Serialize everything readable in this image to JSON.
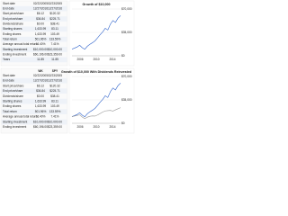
{
  "panels": [
    {
      "table": {
        "rows": [
          [
            "Start date",
            "02/22/2005",
            "02/23/2005"
          ],
          [
            "End date",
            "12/27/2016",
            "12/27/2016"
          ],
          [
            "Start price/share",
            "$6.12",
            "$120.32"
          ],
          [
            "End price/share",
            "$36.84",
            "$225.71"
          ],
          [
            "Dividends/share",
            "$0.00",
            "$38.41"
          ],
          [
            "Starting shares",
            "1,633.99",
            "83.11"
          ],
          [
            "Ending shares",
            "1,633.99",
            "103.49"
          ],
          [
            "Total return",
            "501.96%",
            "133.59%"
          ],
          [
            "Average annual total return",
            "16.40%",
            "7.41%"
          ],
          [
            "Starting investment",
            "$10,000.00",
            "$10,000.00"
          ],
          [
            "Ending investment",
            "$60,196.00",
            "$23,359.00"
          ],
          [
            "Years",
            "11.85",
            "11.85"
          ]
        ]
      },
      "chart": {
        "type": "line",
        "title": "Growth of $10,000",
        "xticks": [
          "2006",
          "2010",
          "2014"
        ],
        "ylim": [
          0,
          70000
        ],
        "yticks": [
          {
            "value": 0,
            "label": "$0"
          },
          {
            "value": 35000,
            "label": "$35,000"
          },
          {
            "value": 70000,
            "label": "$70,000"
          }
        ],
        "series": [
          {
            "color": "#3366cc",
            "values": [
              10000,
              11500,
              13200,
              15800,
              12100,
              9800,
              14300,
              17200,
              19600,
              22400,
              26800,
              31500,
              35800,
              41200,
              38600,
              47300,
              52800,
              49900,
              56400,
              60196
            ]
          }
        ]
      }
    },
    {
      "table": {
        "header": [
          "WK",
          "SPY"
        ],
        "rows": [
          [
            "Start date",
            "02/22/2005",
            "02/23/2005"
          ],
          [
            "End date",
            "12/27/2016",
            "12/27/2016"
          ],
          [
            "Start price/share",
            "$6.12",
            "$120.32"
          ],
          [
            "End price/share",
            "$36.84",
            "$225.71"
          ],
          [
            "Dividends/share",
            "$0.00",
            "$38.41"
          ],
          [
            "Starting shares",
            "1,633.99",
            "83.11"
          ],
          [
            "Ending shares",
            "1,633.99",
            "103.49"
          ],
          [
            "Total return",
            "501.96%",
            "133.59%"
          ],
          [
            "Average annual total return",
            "16.40%",
            "7.41%"
          ],
          [
            "Starting investment",
            "$10,000.00",
            "$10,000.00"
          ],
          [
            "Ending investment",
            "$60,196.00",
            "$23,359.00"
          ]
        ]
      },
      "chart": {
        "type": "line",
        "title": "Growth of $10,000 With Dividends Reinvested",
        "xticks": [
          "2006",
          "2010",
          "2014"
        ],
        "ylim": [
          0,
          70000
        ],
        "yticks": [
          {
            "value": 0,
            "label": "$0"
          },
          {
            "value": 35000,
            "label": "$35,000"
          },
          {
            "value": 70000,
            "label": "$70,000"
          }
        ],
        "series": [
          {
            "color": "#3366cc",
            "values": [
              10000,
              11500,
              13200,
              15800,
              12100,
              9800,
              14300,
              17200,
              19600,
              22400,
              26800,
              31500,
              35800,
              41200,
              38600,
              47300,
              52800,
              49900,
              56400,
              60196
            ]
          },
          {
            "color": "#999999",
            "values": [
              10000,
              10800,
              11900,
              12600,
              9400,
              7100,
              9200,
              10500,
              11000,
              10800,
              12400,
              14600,
              16800,
              18500,
              18900,
              19200,
              18300,
              20100,
              21800,
              23359
            ]
          }
        ]
      }
    }
  ]
}
